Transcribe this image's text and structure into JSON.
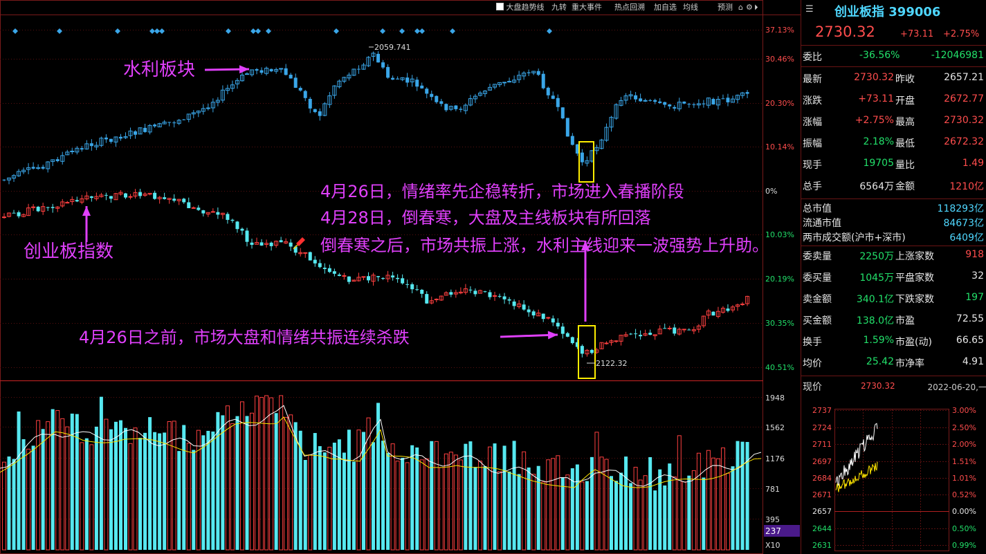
{
  "toolbar": {
    "trend_checkbox_label": "大盘趋势线",
    "items": [
      "九转",
      "重大事件",
      "热点回溯",
      "加自选",
      "均线",
      "预测"
    ]
  },
  "upper_axis_labels": [
    "37.13%",
    "30.46%",
    "20.30%",
    "10.14%",
    "0%",
    "10.03%",
    "20.19%",
    "30.35%",
    "40.51%"
  ],
  "volume_axis_labels": [
    "1948",
    "1562",
    "1176",
    "781",
    "395"
  ],
  "volume_current": "237",
  "volume_unit": "X10",
  "annotations": {
    "sector": "水利板块",
    "index": "创业板指数",
    "line1": "4月26日，情绪率先企稳转折，市场进入春播阶段",
    "line2": "4月28日，倒春寒，大盘及主线板块有所回落",
    "line3": "倒春寒之后，市场共振上涨，水利主线迎来一波强势上升助。",
    "line4": "4月26日之前，市场大盘和情绪共振连续杀跌"
  },
  "price_labels": {
    "sector_high": "2059.741",
    "index_low": "2122.32"
  },
  "quote": {
    "name": "创业板指",
    "code": "399006",
    "price": "2730.32",
    "change": "+73.11",
    "change_pct": "+2.75%",
    "weibi_label": "委比",
    "weibi_pct": "-36.56%",
    "weibi_value": "-12046981",
    "rows_a": [
      {
        "l1": "最新",
        "v1": "2730.32",
        "l2": "昨收",
        "v2": "2657.21"
      },
      {
        "l1": "涨跌",
        "v1": "+73.11",
        "l2": "开盘",
        "v2": "2672.77"
      },
      {
        "l1": "涨幅",
        "v1": "+2.75%",
        "l2": "最高",
        "v2": "2730.32"
      },
      {
        "l1": "振幅",
        "v1": "2.18%",
        "l2": "最低",
        "v2": "2672.32"
      },
      {
        "l1": "现手",
        "v1": "19705",
        "l2": "量比",
        "v2": "1.49"
      },
      {
        "l1": "总手",
        "v1": "6564万",
        "l2": "金额",
        "v2": "1210亿"
      }
    ],
    "rows_b": [
      {
        "l": "总市值",
        "v": "118293亿"
      },
      {
        "l": "流通市值",
        "v": "84673亿"
      },
      {
        "l": "两市成交额(沪市+深市)",
        "v": "6409亿"
      }
    ],
    "rows_c": [
      {
        "l1": "委卖量",
        "v1": "2250万",
        "l2": "上涨家数",
        "v2": "918"
      },
      {
        "l1": "委买量",
        "v1": "1045万",
        "l2": "平盘家数",
        "v2": "32"
      },
      {
        "l1": "卖金额",
        "v1": "340.1亿",
        "l2": "下跌家数",
        "v2": "197"
      },
      {
        "l1": "买金额",
        "v1": "138.0亿",
        "l2": "市盈",
        "v2": "72.55"
      },
      {
        "l1": "换手",
        "v1": "1.59%",
        "l2": "市盈(动)",
        "v2": "66.65"
      },
      {
        "l1": "均价",
        "v1": "25.42",
        "l2": "市净率",
        "v2": "4.91"
      }
    ],
    "now_label": "现价",
    "now_value": "2730.32",
    "datetime": "2022-06-20,一"
  },
  "mini_chart": {
    "left_labels": [
      "2737",
      "2724",
      "2711",
      "2697",
      "2684",
      "2671",
      "2657",
      "2644",
      "2631"
    ],
    "right_labels": [
      "3.00%",
      "2.50%",
      "2.00%",
      "1.51%",
      "1.01%",
      "0.52%",
      "0.00%",
      "0.50%",
      "0.99%"
    ]
  },
  "chart_data": {
    "type": "candlestick",
    "series": [
      {
        "name": "水利板块",
        "high_label": "2059.741"
      },
      {
        "name": "创业板指数",
        "low_label": "2122.32"
      }
    ],
    "y_axis_percent_labels": [
      "37.13%",
      "30.46%",
      "20.30%",
      "10.14%",
      "0%",
      "10.03%",
      "20.19%",
      "30.35%",
      "40.51%"
    ],
    "volume_axis": [
      1948,
      1562,
      1176,
      781,
      395
    ]
  }
}
